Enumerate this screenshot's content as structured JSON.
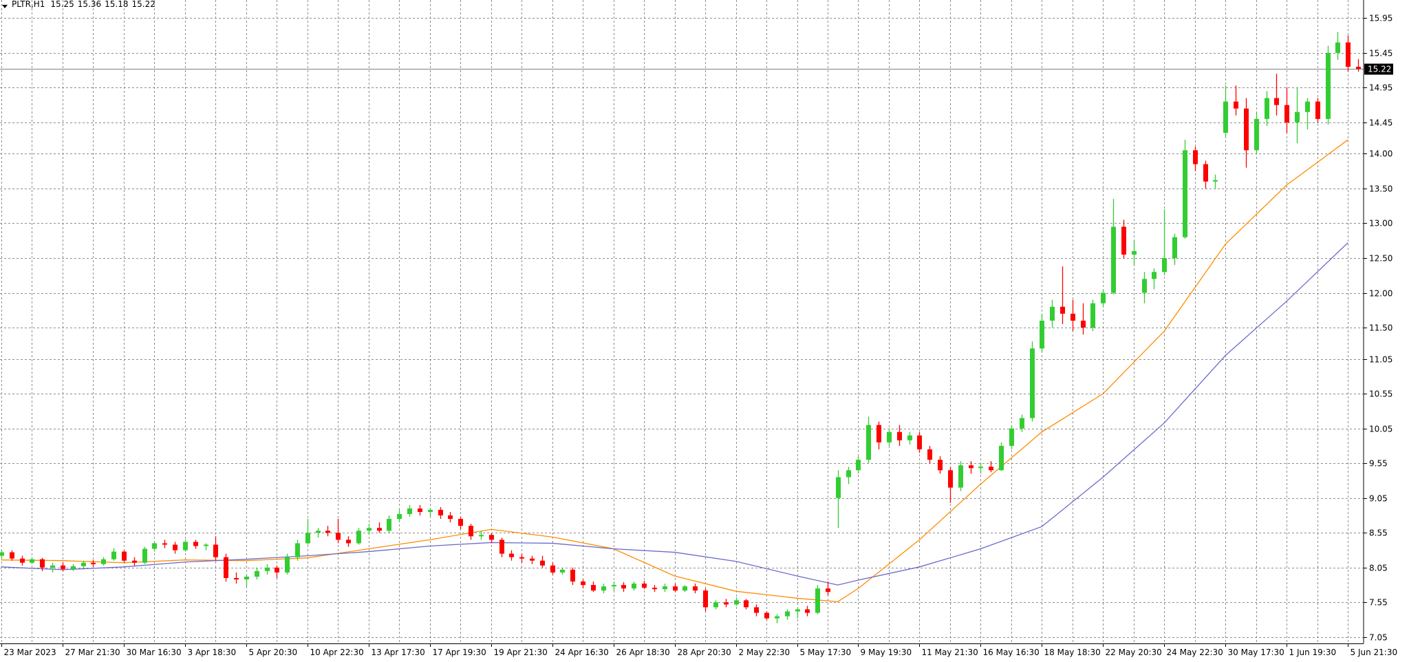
{
  "chart_data": {
    "type": "candlestick",
    "symbol": "PLTR,H1",
    "header_ohlc": [
      15.25,
      15.36,
      15.18,
      15.22
    ],
    "up_color": "#32cd32",
    "down_color": "#ff0000",
    "grid": true,
    "ylim": [
      6.96,
      16.21
    ],
    "yticks": [
      7.05,
      7.55,
      8.05,
      8.55,
      9.05,
      9.55,
      10.05,
      10.55,
      11.05,
      {
        "value": 11.5,
        "label": "11.50"
      },
      {
        "value": 12,
        "label": "12.00"
      },
      {
        "value": 12.5,
        "label": "12.50"
      },
      {
        "value": 13,
        "label": "13.00"
      },
      {
        "value": 13.5,
        "label": "13.50"
      },
      {
        "value": 14,
        "label": "14.00"
      },
      14.45,
      14.95,
      15.45,
      15.95
    ],
    "categories": [
      "23 Mar 2023",
      null,
      null,
      null,
      null,
      null,
      "27 Mar 21:30",
      null,
      null,
      null,
      null,
      null,
      "30 Mar 16:30",
      null,
      null,
      null,
      null,
      null,
      "3 Apr 18:30",
      null,
      null,
      null,
      null,
      null,
      "5 Apr 20:30",
      null,
      null,
      null,
      null,
      null,
      "10 Apr 22:30",
      null,
      null,
      null,
      null,
      null,
      "13 Apr 17:30",
      null,
      null,
      null,
      null,
      null,
      "17 Apr 19:30",
      null,
      null,
      null,
      null,
      null,
      "19 Apr 21:30",
      null,
      null,
      null,
      null,
      null,
      "24 Apr 16:30",
      null,
      null,
      null,
      null,
      null,
      "26 Apr 18:30",
      null,
      null,
      null,
      null,
      null,
      "28 Apr 20:30",
      null,
      null,
      null,
      null,
      null,
      "2 May 22:30",
      null,
      null,
      null,
      null,
      null,
      "5 May 17:30",
      null,
      null,
      null,
      null,
      null,
      "9 May 19:30",
      null,
      null,
      null,
      null,
      null,
      "11 May 21:30",
      null,
      null,
      null,
      null,
      null,
      "16 May 16:30",
      null,
      null,
      null,
      null,
      null,
      "18 May 18:30",
      null,
      null,
      null,
      null,
      null,
      "22 May 20:30",
      null,
      null,
      null,
      null,
      null,
      "24 May 22:30",
      null,
      null,
      null,
      null,
      null,
      "30 May 17:30",
      null,
      null,
      null,
      null,
      null,
      "1 Jun 19:30",
      null,
      null,
      null,
      null,
      null,
      "5 Jun 21:30",
      null
    ],
    "ohlc": [
      [
        8.22,
        8.3,
        8.18,
        8.27
      ],
      [
        8.27,
        8.3,
        8.15,
        8.18
      ],
      [
        8.18,
        8.22,
        8.08,
        8.12
      ],
      [
        8.12,
        8.2,
        8.1,
        8.17
      ],
      [
        8.17,
        8.19,
        8.0,
        8.05
      ],
      [
        8.05,
        8.12,
        7.98,
        8.08
      ],
      [
        8.08,
        8.12,
        8.0,
        8.03
      ],
      [
        8.03,
        8.1,
        8.0,
        8.07
      ],
      [
        8.07,
        8.15,
        8.05,
        8.12
      ],
      [
        8.12,
        8.16,
        8.06,
        8.1
      ],
      [
        8.1,
        8.2,
        8.08,
        8.17
      ],
      [
        8.17,
        8.33,
        8.15,
        8.28
      ],
      [
        8.28,
        8.3,
        8.12,
        8.15
      ],
      [
        8.15,
        8.2,
        8.08,
        8.12
      ],
      [
        8.12,
        8.35,
        8.1,
        8.32
      ],
      [
        8.32,
        8.42,
        8.28,
        8.4
      ],
      [
        8.4,
        8.45,
        8.33,
        8.38
      ],
      [
        8.38,
        8.42,
        8.25,
        8.3
      ],
      [
        8.3,
        8.45,
        8.28,
        8.42
      ],
      [
        8.42,
        8.45,
        8.32,
        8.36
      ],
      [
        8.36,
        8.4,
        8.3,
        8.38
      ],
      [
        8.38,
        8.5,
        8.15,
        8.2
      ],
      [
        8.2,
        8.25,
        7.85,
        7.9
      ],
      [
        7.9,
        7.98,
        7.82,
        7.88
      ],
      [
        7.88,
        7.95,
        7.78,
        7.92
      ],
      [
        7.92,
        8.05,
        7.88,
        8.0
      ],
      [
        8.0,
        8.1,
        7.95,
        8.05
      ],
      [
        8.05,
        8.08,
        7.9,
        7.98
      ],
      [
        7.98,
        8.25,
        7.95,
        8.2
      ],
      [
        8.2,
        8.45,
        8.15,
        8.4
      ],
      [
        8.4,
        8.75,
        8.38,
        8.55
      ],
      [
        8.55,
        8.62,
        8.48,
        8.58
      ],
      [
        8.58,
        8.65,
        8.5,
        8.55
      ],
      [
        8.55,
        8.75,
        8.4,
        8.45
      ],
      [
        8.45,
        8.5,
        8.35,
        8.4
      ],
      [
        8.4,
        8.62,
        8.38,
        8.58
      ],
      [
        8.58,
        8.68,
        8.52,
        8.62
      ],
      [
        8.62,
        8.7,
        8.55,
        8.58
      ],
      [
        8.58,
        8.8,
        8.55,
        8.75
      ],
      [
        8.75,
        8.88,
        8.7,
        8.82
      ],
      [
        8.82,
        8.95,
        8.78,
        8.9
      ],
      [
        8.9,
        8.95,
        8.8,
        8.85
      ],
      [
        8.85,
        8.9,
        8.78,
        8.88
      ],
      [
        8.88,
        8.92,
        8.75,
        8.8
      ],
      [
        8.8,
        8.85,
        8.7,
        8.75
      ],
      [
        8.75,
        8.78,
        8.6,
        8.65
      ],
      [
        8.65,
        8.68,
        8.45,
        8.5
      ],
      [
        8.5,
        8.58,
        8.45,
        8.52
      ],
      [
        8.52,
        8.55,
        8.4,
        8.45
      ],
      [
        8.45,
        8.48,
        8.2,
        8.25
      ],
      [
        8.25,
        8.3,
        8.15,
        8.2
      ],
      [
        8.2,
        8.25,
        8.12,
        8.18
      ],
      [
        8.18,
        8.22,
        8.1,
        8.15
      ],
      [
        8.15,
        8.22,
        8.05,
        8.08
      ],
      [
        8.08,
        8.12,
        7.95,
        7.98
      ],
      [
        7.98,
        8.05,
        7.95,
        8.02
      ],
      [
        8.02,
        8.05,
        7.8,
        7.85
      ],
      [
        7.85,
        7.88,
        7.75,
        7.8
      ],
      [
        7.8,
        7.85,
        7.7,
        7.72
      ],
      [
        7.72,
        7.82,
        7.68,
        7.78
      ],
      [
        7.78,
        7.85,
        7.72,
        7.8
      ],
      [
        7.8,
        7.84,
        7.7,
        7.75
      ],
      [
        7.75,
        7.85,
        7.72,
        7.82
      ],
      [
        7.82,
        7.86,
        7.74,
        7.76
      ],
      [
        7.76,
        7.8,
        7.7,
        7.74
      ],
      [
        7.74,
        7.82,
        7.7,
        7.78
      ],
      [
        7.78,
        7.82,
        7.7,
        7.72
      ],
      [
        7.72,
        7.8,
        7.7,
        7.78
      ],
      [
        7.78,
        7.82,
        7.68,
        7.72
      ],
      [
        7.72,
        7.75,
        7.42,
        7.48
      ],
      [
        7.48,
        7.58,
        7.45,
        7.55
      ],
      [
        7.55,
        7.6,
        7.48,
        7.52
      ],
      [
        7.52,
        7.62,
        7.5,
        7.58
      ],
      [
        7.58,
        7.6,
        7.45,
        7.48
      ],
      [
        7.48,
        7.52,
        7.35,
        7.4
      ],
      [
        7.4,
        7.42,
        7.3,
        7.32
      ],
      [
        7.32,
        7.38,
        7.25,
        7.35
      ],
      [
        7.35,
        7.45,
        7.3,
        7.42
      ],
      [
        7.42,
        7.48,
        7.32,
        7.45
      ],
      [
        7.45,
        7.5,
        7.35,
        7.4
      ],
      [
        7.4,
        7.8,
        7.38,
        7.75
      ],
      [
        7.75,
        7.85,
        7.65,
        7.7
      ],
      [
        9.05,
        9.45,
        8.62,
        9.35
      ],
      [
        9.35,
        9.5,
        9.25,
        9.45
      ],
      [
        9.45,
        9.65,
        9.4,
        9.6
      ],
      [
        9.6,
        10.22,
        9.55,
        10.1
      ],
      [
        10.1,
        10.15,
        9.75,
        9.85
      ],
      [
        9.85,
        10.05,
        9.8,
        10.0
      ],
      [
        10.0,
        10.1,
        9.8,
        9.88
      ],
      [
        9.88,
        10.0,
        9.82,
        9.95
      ],
      [
        9.95,
        10.0,
        9.7,
        9.75
      ],
      [
        9.75,
        9.8,
        9.55,
        9.6
      ],
      [
        9.6,
        9.65,
        9.4,
        9.45
      ],
      [
        9.45,
        9.5,
        8.98,
        9.2
      ],
      [
        9.2,
        9.58,
        9.15,
        9.52
      ],
      [
        9.52,
        9.58,
        9.4,
        9.48
      ],
      [
        9.48,
        9.55,
        9.4,
        9.5
      ],
      [
        9.5,
        9.58,
        9.42,
        9.45
      ],
      [
        9.45,
        9.85,
        9.44,
        9.8
      ],
      [
        9.8,
        10.1,
        9.75,
        10.05
      ],
      [
        10.05,
        10.25,
        10.0,
        10.2
      ],
      [
        10.2,
        11.3,
        10.15,
        11.2
      ],
      [
        11.2,
        11.7,
        11.15,
        11.6
      ],
      [
        11.6,
        11.9,
        11.5,
        11.8
      ],
      [
        11.8,
        12.38,
        11.55,
        11.7
      ],
      [
        11.7,
        11.9,
        11.45,
        11.6
      ],
      [
        11.6,
        11.85,
        11.4,
        11.5
      ],
      [
        11.5,
        11.9,
        11.45,
        11.85
      ],
      [
        11.85,
        12.05,
        11.8,
        12.0
      ],
      [
        12.0,
        13.35,
        11.98,
        12.95
      ],
      [
        12.95,
        13.05,
        12.5,
        12.55
      ],
      [
        12.55,
        12.75,
        12.4,
        12.6
      ],
      [
        12.0,
        12.3,
        11.85,
        12.2
      ],
      [
        12.2,
        12.35,
        12.05,
        12.3
      ],
      [
        12.3,
        13.2,
        12.25,
        12.5
      ],
      [
        12.5,
        12.85,
        12.4,
        12.8
      ],
      [
        12.8,
        14.2,
        12.78,
        14.05
      ],
      [
        14.05,
        14.1,
        13.75,
        13.85
      ],
      [
        13.85,
        13.9,
        13.5,
        13.6
      ],
      [
        13.6,
        13.7,
        13.5,
        13.62
      ],
      [
        14.3,
        14.98,
        14.25,
        14.75
      ],
      [
        14.75,
        14.98,
        14.55,
        14.65
      ],
      [
        14.65,
        14.8,
        13.8,
        14.05
      ],
      [
        14.05,
        14.6,
        14.0,
        14.5
      ],
      [
        14.5,
        14.9,
        14.4,
        14.8
      ],
      [
        14.8,
        15.15,
        14.55,
        14.7
      ],
      [
        14.7,
        14.95,
        14.3,
        14.45
      ],
      [
        14.45,
        14.95,
        14.15,
        14.6
      ],
      [
        14.6,
        14.8,
        14.35,
        14.75
      ],
      [
        14.75,
        14.8,
        14.45,
        14.5
      ],
      [
        14.5,
        15.55,
        14.42,
        15.45
      ],
      [
        15.45,
        15.75,
        15.35,
        15.6
      ],
      [
        15.6,
        15.7,
        15.18,
        15.25
      ],
      [
        15.25,
        15.36,
        15.18,
        15.22
      ]
    ],
    "moving_averages": [
      {
        "color": "#ff8c00",
        "x": [
          0,
          6,
          12,
          18,
          24,
          30,
          36,
          42,
          48,
          54,
          60,
          66,
          72,
          78,
          82,
          84,
          90,
          96,
          102,
          108,
          114,
          120,
          126,
          132
        ],
        "values": [
          8.16,
          8.15,
          8.12,
          8.16,
          8.15,
          8.19,
          8.32,
          8.45,
          8.6,
          8.49,
          8.32,
          7.93,
          7.71,
          7.61,
          7.56,
          7.75,
          8.45,
          9.25,
          10.0,
          10.55,
          11.45,
          12.7,
          13.55,
          14.2
        ]
      },
      {
        "color": "#6a6acd",
        "x": [
          0,
          6,
          12,
          18,
          24,
          30,
          36,
          42,
          48,
          54,
          60,
          66,
          72,
          78,
          82,
          84,
          90,
          96,
          102,
          108,
          114,
          120,
          126,
          132
        ],
        "values": [
          8.06,
          8.02,
          8.06,
          8.13,
          8.17,
          8.22,
          8.28,
          8.36,
          8.41,
          8.4,
          8.32,
          8.27,
          8.14,
          7.93,
          7.8,
          7.87,
          8.06,
          8.32,
          8.64,
          9.35,
          10.13,
          11.1,
          11.88,
          12.72
        ]
      }
    ]
  }
}
